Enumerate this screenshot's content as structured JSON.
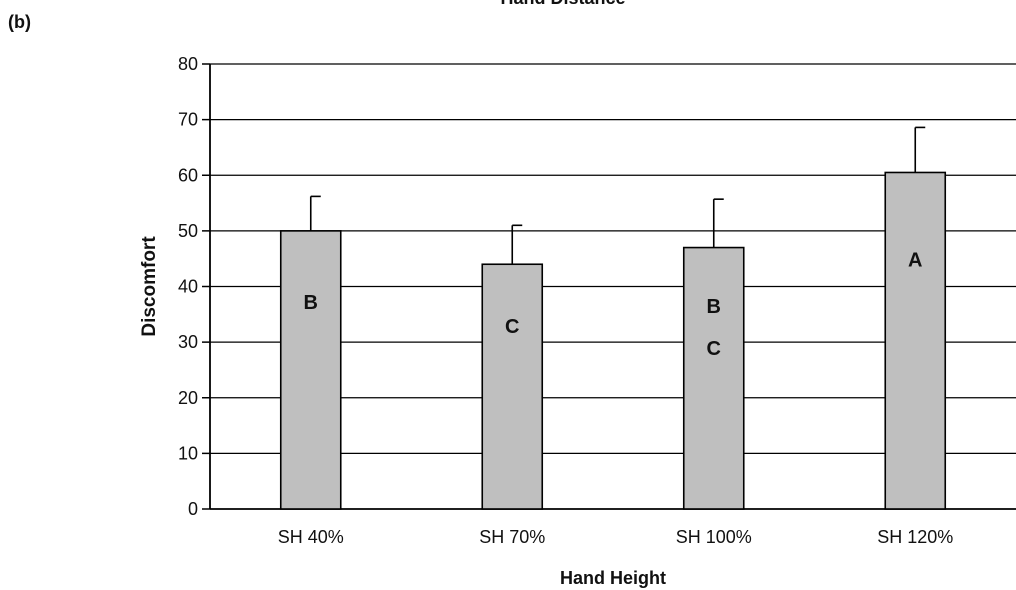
{
  "panel_label": "(b)",
  "chart_data": {
    "type": "bar",
    "title": "Hand Distance",
    "xlabel": "Hand Height",
    "ylabel": "Discomfort",
    "categories": [
      "SH 40%",
      "SH 70%",
      "SH 100%",
      "SH 120%"
    ],
    "values": [
      50,
      44,
      47,
      60.5
    ],
    "error_plus": [
      6.2,
      7,
      8.7,
      8.1
    ],
    "group_letters": [
      [
        "B"
      ],
      [
        "C"
      ],
      [
        "B",
        "C"
      ],
      [
        "A"
      ]
    ],
    "ylim": [
      0,
      80
    ],
    "yticks": [
      0,
      10,
      20,
      30,
      40,
      50,
      60,
      70,
      80
    ],
    "grid": true,
    "bar_color": "#bfbfbf",
    "edge_color": "#000000"
  }
}
